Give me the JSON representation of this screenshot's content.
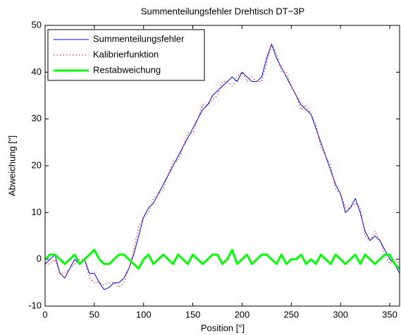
{
  "chart_data": {
    "type": "line",
    "title": "Summenteilungsfehler Drehtisch DT−3P",
    "xlabel": "Position [°]",
    "ylabel": "Abweichung [\"]",
    "x": [
      0,
      5,
      10,
      15,
      20,
      25,
      30,
      35,
      40,
      45,
      50,
      55,
      60,
      65,
      70,
      75,
      80,
      85,
      90,
      95,
      100,
      105,
      110,
      115,
      120,
      125,
      130,
      135,
      140,
      145,
      150,
      155,
      160,
      165,
      170,
      175,
      180,
      185,
      190,
      195,
      200,
      205,
      210,
      215,
      220,
      225,
      230,
      235,
      240,
      245,
      250,
      255,
      260,
      265,
      270,
      275,
      280,
      285,
      290,
      295,
      300,
      305,
      310,
      315,
      320,
      325,
      330,
      335,
      340,
      345,
      350,
      355,
      360
    ],
    "series": [
      {
        "name": "Summenteilungsfehler",
        "color": "#0000ff",
        "style": "solid",
        "width": 1,
        "values": [
          -1,
          0,
          1,
          -3,
          -4,
          -2,
          0,
          -1,
          0,
          -3,
          -3,
          -5,
          -6.5,
          -6,
          -5,
          -5,
          -4,
          -2,
          1,
          5,
          9,
          11,
          12,
          14,
          16,
          18,
          20,
          22,
          24,
          26,
          28,
          30,
          32,
          33,
          35,
          36,
          37,
          38,
          39,
          38,
          40,
          39,
          38,
          38,
          39,
          43,
          46,
          43,
          41,
          39,
          37,
          35,
          33,
          32,
          31,
          28,
          25,
          22,
          19,
          16,
          14,
          10,
          11,
          13,
          10,
          6,
          4,
          5,
          4,
          2,
          0,
          -1,
          -3
        ]
      },
      {
        "name": "Kalibrierfunktion",
        "color": "#ff0000",
        "style": "dotted",
        "width": 1,
        "values": [
          -1,
          -1,
          0,
          -3,
          -3,
          -2,
          -1,
          0,
          0,
          -4,
          -5,
          -5,
          -5.5,
          -5,
          -5,
          -6,
          -5,
          -2,
          2,
          7,
          9,
          10,
          13,
          14,
          15,
          18,
          21,
          21,
          24,
          27,
          27,
          30,
          33,
          33,
          34,
          35,
          38,
          38,
          37,
          39,
          40,
          38,
          39,
          38,
          38,
          42,
          46,
          44,
          40,
          40,
          37,
          35,
          32,
          33,
          31,
          29,
          24,
          22,
          20,
          15,
          14,
          11,
          11,
          12,
          11,
          5,
          4,
          6,
          4,
          1,
          -1,
          0,
          -1
        ]
      },
      {
        "name": "Restabweichung",
        "color": "#00ff00",
        "style": "solid",
        "width": 3,
        "values": [
          0,
          1,
          1,
          0,
          -1,
          0,
          1,
          -1,
          0,
          1,
          2,
          0,
          -1,
          -1,
          0,
          1,
          1,
          0,
          -1,
          -2,
          0,
          1,
          -1,
          0,
          1,
          0,
          -1,
          1,
          0,
          -1,
          1,
          0,
          -1,
          0,
          1,
          1,
          -1,
          0,
          2,
          -1,
          0,
          1,
          -1,
          0,
          1,
          1,
          0,
          -1,
          1,
          -1,
          0,
          0,
          1,
          -1,
          0,
          -1,
          1,
          0,
          -1,
          1,
          0,
          -1,
          0,
          1,
          -1,
          1,
          0,
          -1,
          0,
          1,
          1,
          -1,
          -2
        ]
      }
    ],
    "xlim": [
      0,
      360
    ],
    "xticks": [
      0,
      50,
      100,
      150,
      200,
      250,
      300,
      350
    ],
    "ylim": [
      -10,
      50
    ],
    "yticks": [
      -10,
      0,
      10,
      20,
      30,
      40,
      50
    ],
    "grid": false,
    "legend": "upper left"
  }
}
